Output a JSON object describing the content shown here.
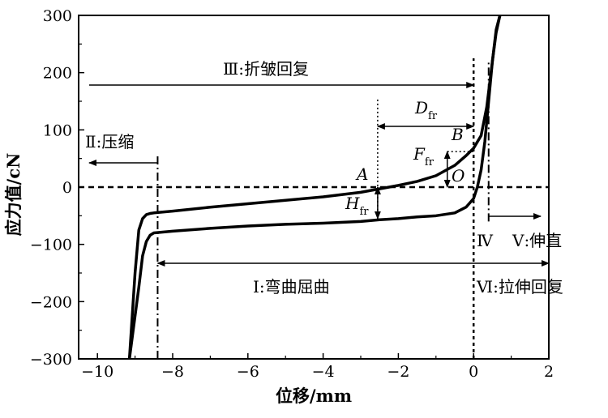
{
  "chart_data": {
    "type": "line",
    "xlabel": "位移/mm",
    "ylabel": "应力值/cN",
    "xlim": [
      -10.5,
      2
    ],
    "ylim": [
      -300,
      300
    ],
    "xticks": [
      -10,
      -8,
      -6,
      -4,
      -2,
      0,
      2
    ],
    "xtick_labels": [
      "−10",
      "−8",
      "−6",
      "−4",
      "−2",
      "0",
      "2"
    ],
    "yticks": [
      -300,
      -200,
      -100,
      0,
      100,
      200,
      300
    ],
    "ytick_labels": [
      "−300",
      "−200",
      "−100",
      "0",
      "100",
      "200",
      "300"
    ],
    "grid": false,
    "series": [
      {
        "x": [
          -9.15,
          -9.1,
          -9.0,
          -8.9,
          -8.8,
          -8.7,
          -8.6,
          -8.5,
          -8.0,
          -7.0,
          -6.0,
          -5.0,
          -4.0,
          -3.0,
          -2.5,
          -2.0,
          -1.5,
          -1.0,
          -0.5,
          -0.2,
          0.0,
          0.2,
          0.35,
          0.5,
          0.6,
          0.7
        ],
        "y": [
          -300,
          -250,
          -150,
          -75,
          -55,
          -48,
          -46,
          -45,
          -42,
          -35,
          -29,
          -23,
          -17,
          -9,
          -3,
          3,
          10,
          20,
          38,
          55,
          68,
          90,
          140,
          220,
          270,
          300
        ]
      },
      {
        "x": [
          -9.15,
          -9.05,
          -8.9,
          -8.8,
          -8.7,
          -8.6,
          -8.5,
          -8.0,
          -7.0,
          -6.0,
          -5.0,
          -4.0,
          -3.0,
          -2.5,
          -2.0,
          -1.5,
          -1.0,
          -0.5,
          -0.2,
          0.0,
          0.1,
          0.2,
          0.3,
          0.4,
          0.5,
          0.6,
          0.7
        ],
        "y": [
          -300,
          -250,
          -175,
          -120,
          -95,
          -84,
          -80,
          -77,
          -72,
          -68,
          -65,
          -63,
          -60,
          -57,
          -55,
          -52,
          -50,
          -45,
          -35,
          -20,
          0,
          30,
          80,
          150,
          220,
          275,
          300
        ]
      }
    ],
    "annotations": {
      "region1": "Ⅰ:弯曲屈曲",
      "region2": "Ⅱ:压缩",
      "region3": "Ⅲ:折皱回复",
      "region4": "Ⅳ",
      "region5": "Ⅴ:伸直",
      "region6": "Ⅵ:拉伸回复",
      "point_a": "A",
      "point_b": "B",
      "point_o": "O",
      "d_main": "D",
      "d_sub": "fr",
      "f_main": "F",
      "f_sub": "fr",
      "h_main": "H",
      "h_sub": "fr"
    }
  }
}
